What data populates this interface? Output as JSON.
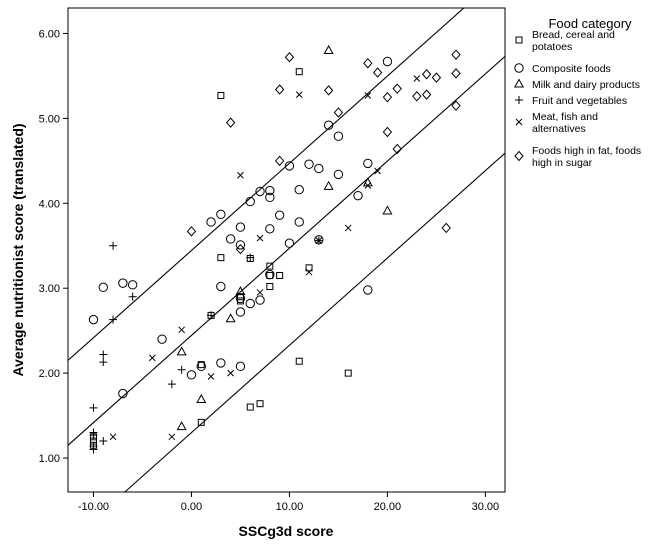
{
  "chart_data": {
    "type": "scatter",
    "title": "",
    "xlabel": "SSCg3d score",
    "ylabel": "Average nutritionist score (translated)",
    "xlim": [
      -12.6,
      32.0
    ],
    "ylim": [
      0.6,
      6.3
    ],
    "x_ticks": [
      "-10.00",
      "0.00",
      "10.00",
      "20.00",
      "30.00"
    ],
    "y_ticks": [
      "1.00",
      "2.00",
      "3.00",
      "4.00",
      "5.00",
      "6.00"
    ],
    "x_tick_values": [
      -10,
      0,
      10,
      20,
      30
    ],
    "y_tick_values": [
      1,
      2,
      3,
      4,
      5,
      6
    ],
    "grid": false,
    "legend": {
      "title": "Food category",
      "position": "right"
    },
    "lines": [
      {
        "x": [
          -12.6,
          27.8
        ],
        "y": [
          2.15,
          6.3
        ]
      },
      {
        "x": [
          -12.6,
          32.0
        ],
        "y": [
          1.15,
          5.73
        ]
      },
      {
        "x": [
          -6.8,
          32.0
        ],
        "y": [
          0.6,
          4.59
        ]
      }
    ],
    "series": [
      {
        "name": "Bread, cereal and potatoes",
        "marker": "square",
        "points": [
          [
            -10,
            1.25
          ],
          [
            -10,
            1.2
          ],
          [
            -10,
            1.15
          ],
          [
            1,
            2.1
          ],
          [
            1,
            1.42
          ],
          [
            2,
            2.68
          ],
          [
            3,
            5.27
          ],
          [
            3,
            3.36
          ],
          [
            5,
            2.9
          ],
          [
            5,
            2.85
          ],
          [
            6,
            3.35
          ],
          [
            6,
            1.6
          ],
          [
            7,
            1.64
          ],
          [
            8,
            3.02
          ],
          [
            8,
            3.15
          ],
          [
            8,
            3.26
          ],
          [
            9,
            3.15
          ],
          [
            11,
            5.55
          ],
          [
            11,
            2.14
          ],
          [
            12,
            3.24
          ],
          [
            16,
            2.0
          ]
        ]
      },
      {
        "name": "Composite foods",
        "marker": "circle",
        "points": [
          [
            -10,
            2.63
          ],
          [
            -9,
            3.01
          ],
          [
            -7,
            3.06
          ],
          [
            -7,
            1.76
          ],
          [
            -6,
            3.04
          ],
          [
            -3,
            2.4
          ],
          [
            0,
            1.98
          ],
          [
            1,
            2.08
          ],
          [
            2,
            3.78
          ],
          [
            3,
            3.87
          ],
          [
            3,
            3.02
          ],
          [
            3,
            2.12
          ],
          [
            4,
            3.58
          ],
          [
            5,
            3.72
          ],
          [
            5,
            3.51
          ],
          [
            5,
            2.88
          ],
          [
            5,
            2.72
          ],
          [
            5,
            2.08
          ],
          [
            6,
            4.02
          ],
          [
            6,
            2.82
          ],
          [
            7,
            4.14
          ],
          [
            7,
            2.86
          ],
          [
            8,
            4.15
          ],
          [
            8,
            4.07
          ],
          [
            8,
            3.7
          ],
          [
            8,
            3.16
          ],
          [
            9,
            3.86
          ],
          [
            10,
            4.44
          ],
          [
            10,
            3.53
          ],
          [
            11,
            4.16
          ],
          [
            11,
            3.78
          ],
          [
            12,
            4.46
          ],
          [
            13,
            4.41
          ],
          [
            13,
            3.57
          ],
          [
            14,
            4.92
          ],
          [
            15,
            4.79
          ],
          [
            15,
            4.34
          ],
          [
            17,
            4.09
          ],
          [
            18,
            4.47
          ],
          [
            18,
            2.98
          ],
          [
            20,
            5.67
          ]
        ]
      },
      {
        "name": "Milk and dairy products",
        "marker": "triangle",
        "points": [
          [
            -1,
            2.25
          ],
          [
            -1,
            1.37
          ],
          [
            1,
            1.69
          ],
          [
            4,
            2.64
          ],
          [
            5,
            2.96
          ],
          [
            14,
            4.2
          ],
          [
            14,
            5.8
          ],
          [
            18,
            4.24
          ],
          [
            20,
            3.91
          ]
        ]
      },
      {
        "name": "Fruit and vegetables",
        "marker": "plus",
        "points": [
          [
            -10,
            1.59
          ],
          [
            -10,
            1.3
          ],
          [
            -10,
            1.27
          ],
          [
            -10,
            1.14
          ],
          [
            -10,
            1.1
          ],
          [
            -9,
            2.22
          ],
          [
            -9,
            2.13
          ],
          [
            -9,
            1.2
          ],
          [
            -8,
            3.5
          ],
          [
            -8,
            2.63
          ],
          [
            -6,
            2.9
          ],
          [
            -2,
            1.87
          ],
          [
            -1,
            2.04
          ],
          [
            2,
            2.68
          ],
          [
            6,
            3.36
          ],
          [
            13,
            3.56
          ]
        ]
      },
      {
        "name": "Meat, fish and alternatives",
        "marker": "cross",
        "points": [
          [
            -8,
            1.25
          ],
          [
            -4,
            2.18
          ],
          [
            -2,
            1.25
          ],
          [
            -1,
            2.51
          ],
          [
            2,
            1.96
          ],
          [
            4,
            2.0
          ],
          [
            5,
            4.33
          ],
          [
            7,
            3.59
          ],
          [
            7,
            2.95
          ],
          [
            11,
            5.28
          ],
          [
            12,
            3.19
          ],
          [
            13,
            3.56
          ],
          [
            16,
            3.71
          ],
          [
            18,
            5.27
          ],
          [
            18,
            4.21
          ],
          [
            19,
            4.38
          ],
          [
            23,
            5.47
          ]
        ]
      },
      {
        "name": "Foods high in fat, foods high in sugar",
        "marker": "diamond",
        "points": [
          [
            0,
            3.67
          ],
          [
            4,
            4.95
          ],
          [
            5,
            3.46
          ],
          [
            9,
            5.34
          ],
          [
            9,
            4.5
          ],
          [
            10,
            5.72
          ],
          [
            14,
            5.33
          ],
          [
            15,
            5.07
          ],
          [
            18,
            5.65
          ],
          [
            19,
            5.54
          ],
          [
            20,
            5.25
          ],
          [
            20,
            4.84
          ],
          [
            21,
            5.35
          ],
          [
            21,
            4.64
          ],
          [
            23,
            5.26
          ],
          [
            24,
            5.52
          ],
          [
            24,
            5.28
          ],
          [
            25,
            5.48
          ],
          [
            26,
            3.71
          ],
          [
            27,
            5.75
          ],
          [
            27,
            5.53
          ],
          [
            27,
            5.15
          ]
        ]
      }
    ]
  }
}
